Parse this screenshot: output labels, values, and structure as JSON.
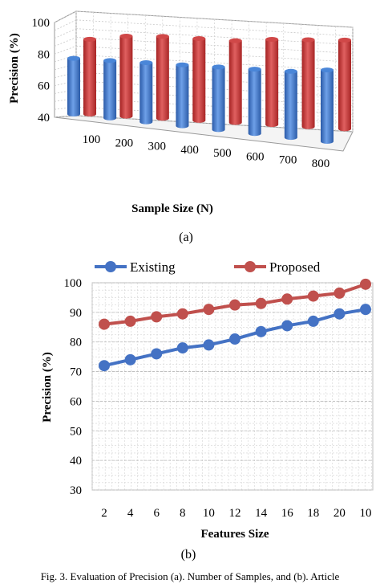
{
  "chart_data": [
    {
      "id": "a",
      "type": "bar",
      "style": "3d-cylinder",
      "panel_label": "(a)",
      "categories": [
        "100",
        "200",
        "300",
        "400",
        "500",
        "600",
        "700",
        "800"
      ],
      "series": [
        {
          "color": "#3c78c8",
          "values": [
            72,
            73,
            74,
            75,
            76,
            77,
            78,
            81
          ]
        },
        {
          "color": "#c83232",
          "values": [
            83,
            86,
            87,
            87,
            87,
            89,
            90,
            91
          ]
        }
      ],
      "xlabel": "Sample Size (N)",
      "ylabel": "Precision (%)",
      "ylim": [
        40,
        100
      ],
      "yticks": [
        "40",
        "60",
        "80",
        "100"
      ],
      "grid": true,
      "legend": "none"
    },
    {
      "id": "b",
      "type": "line",
      "panel_label": "(b)",
      "categories": [
        "2",
        "4",
        "6",
        "8",
        "10",
        "12",
        "14",
        "16",
        "18",
        "20",
        "10"
      ],
      "series": [
        {
          "name": "Existing",
          "color": "#4472c4",
          "values": [
            72,
            74,
            76,
            78,
            79,
            81,
            83.5,
            85.5,
            87,
            89.5,
            91
          ]
        },
        {
          "name": "Proposed",
          "color": "#c0504d",
          "values": [
            86,
            87,
            88.5,
            89.5,
            91,
            92.5,
            93,
            94.5,
            95.5,
            96.5,
            99.5
          ]
        }
      ],
      "xlabel": "Features Size",
      "ylabel": "Precision (%)",
      "ylim": [
        30,
        100
      ],
      "yticks": [
        "30",
        "40",
        "50",
        "60",
        "70",
        "80",
        "90",
        "100"
      ],
      "grid": true,
      "legend": "top"
    }
  ],
  "caption": "Fig. 3.   Evaluation of Precision (a). Number of Samples, and (b). Article"
}
